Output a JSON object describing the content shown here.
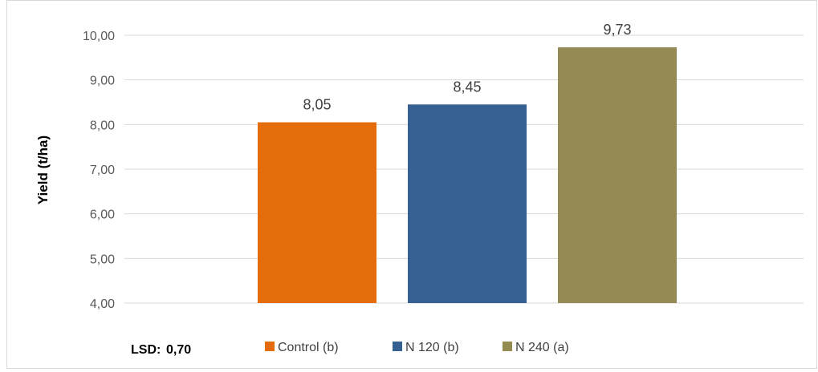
{
  "chart_data": {
    "type": "bar",
    "categories": [
      "Control (b)",
      "N 120 (b)",
      "N 240 (a)"
    ],
    "values": [
      8.05,
      8.45,
      9.73
    ],
    "value_labels": [
      "8,05",
      "8,45",
      "9,73"
    ],
    "colors": [
      "#E46C0A",
      "#376092",
      "#948A54"
    ],
    "ylabel": "Yield (t/ha)",
    "xlabel": "",
    "ylim": [
      4,
      10
    ],
    "yticks": [
      4,
      5,
      6,
      7,
      8,
      9,
      10
    ],
    "ytick_labels": [
      "4,00",
      "5,00",
      "6,00",
      "7,00",
      "8,00",
      "9,00",
      "10,00"
    ],
    "grid": true,
    "legend": {
      "position": "bottom",
      "note_label": "LSD:",
      "note_value": "0,70",
      "entries": [
        "Control (b)",
        "N 120 (b)",
        "N 240 (a)"
      ]
    }
  }
}
